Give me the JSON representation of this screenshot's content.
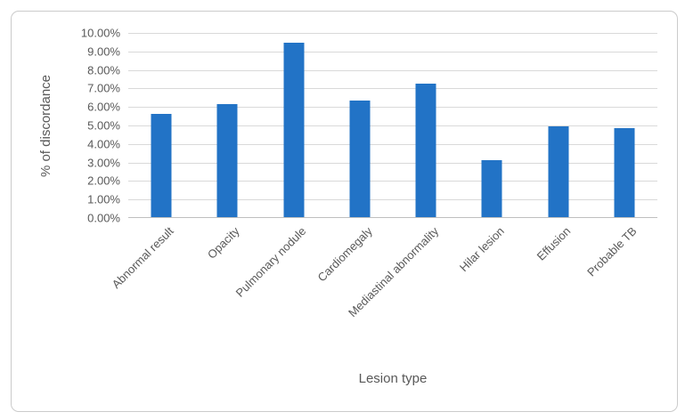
{
  "chart_data": {
    "type": "bar",
    "title": "",
    "categories": [
      "Abnormal result",
      "Opacity",
      "Pulmonary nodule",
      "Cardiomegaly",
      "Mediastinal abnormality",
      "Hilar lesion",
      "Effusion",
      "Probable TB"
    ],
    "values": [
      5.6,
      6.1,
      9.4,
      6.3,
      7.2,
      3.1,
      4.9,
      4.8
    ],
    "xlabel": "Lesion type",
    "ylabel": "% of discordance",
    "ylim": [
      0,
      10
    ],
    "ytick_step": 1,
    "ytick_labels_top_to_bottom": [
      "10.00%",
      "9.00%",
      "8.00%",
      "7.00%",
      "6.00%",
      "5.00%",
      "4.00%",
      "3.00%",
      "2.00%",
      "1.00%",
      "0.00%"
    ],
    "grid": true,
    "legend": false,
    "colors": {
      "bar": "#2273c6",
      "gridline": "#d9d9d9",
      "axis_line": "#bfbfbf",
      "text": "#595959",
      "frame_border": "#cbcbcb",
      "background": "#ffffff"
    }
  }
}
